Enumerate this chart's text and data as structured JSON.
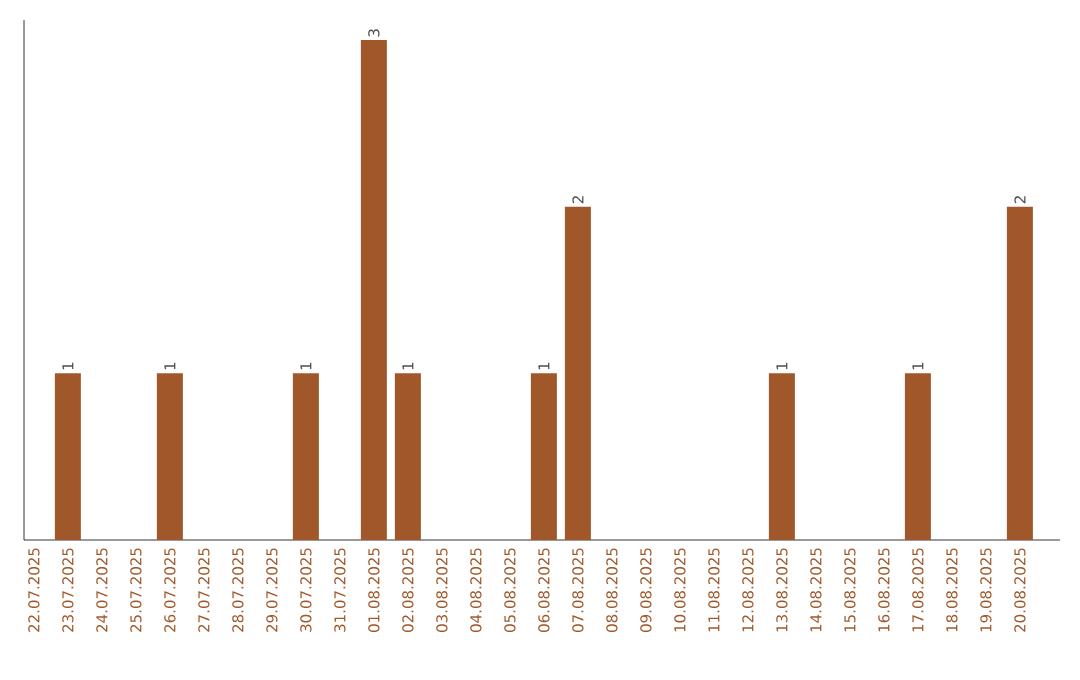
{
  "chart_data": {
    "type": "bar",
    "categories": [
      "22.07.2025",
      "23.07.2025",
      "24.07.2025",
      "25.07.2025",
      "26.07.2025",
      "27.07.2025",
      "28.07.2025",
      "29.07.2025",
      "30.07.2025",
      "31.07.2025",
      "01.08.2025",
      "02.08.2025",
      "03.08.2025",
      "04.08.2025",
      "05.08.2025",
      "06.08.2025",
      "07.08.2025",
      "08.08.2025",
      "09.08.2025",
      "10.08.2025",
      "11.08.2025",
      "12.08.2025",
      "13.08.2025",
      "14.08.2025",
      "15.08.2025",
      "16.08.2025",
      "17.08.2025",
      "18.08.2025",
      "19.08.2025",
      "20.08.2025"
    ],
    "values": [
      0,
      1,
      0,
      0,
      1,
      0,
      0,
      0,
      1,
      0,
      3,
      1,
      0,
      0,
      0,
      1,
      2,
      0,
      0,
      0,
      0,
      0,
      1,
      0,
      0,
      0,
      1,
      0,
      0,
      2
    ],
    "value_labels": [
      null,
      "1",
      null,
      null,
      "1",
      null,
      null,
      null,
      "1",
      null,
      "3",
      "1",
      null,
      null,
      null,
      "1",
      "2",
      null,
      null,
      null,
      null,
      null,
      "1",
      null,
      null,
      null,
      "1",
      null,
      null,
      "2"
    ],
    "color": "#a0582a",
    "ylim": [
      0,
      3.12
    ],
    "tick_labels": "x"
  }
}
